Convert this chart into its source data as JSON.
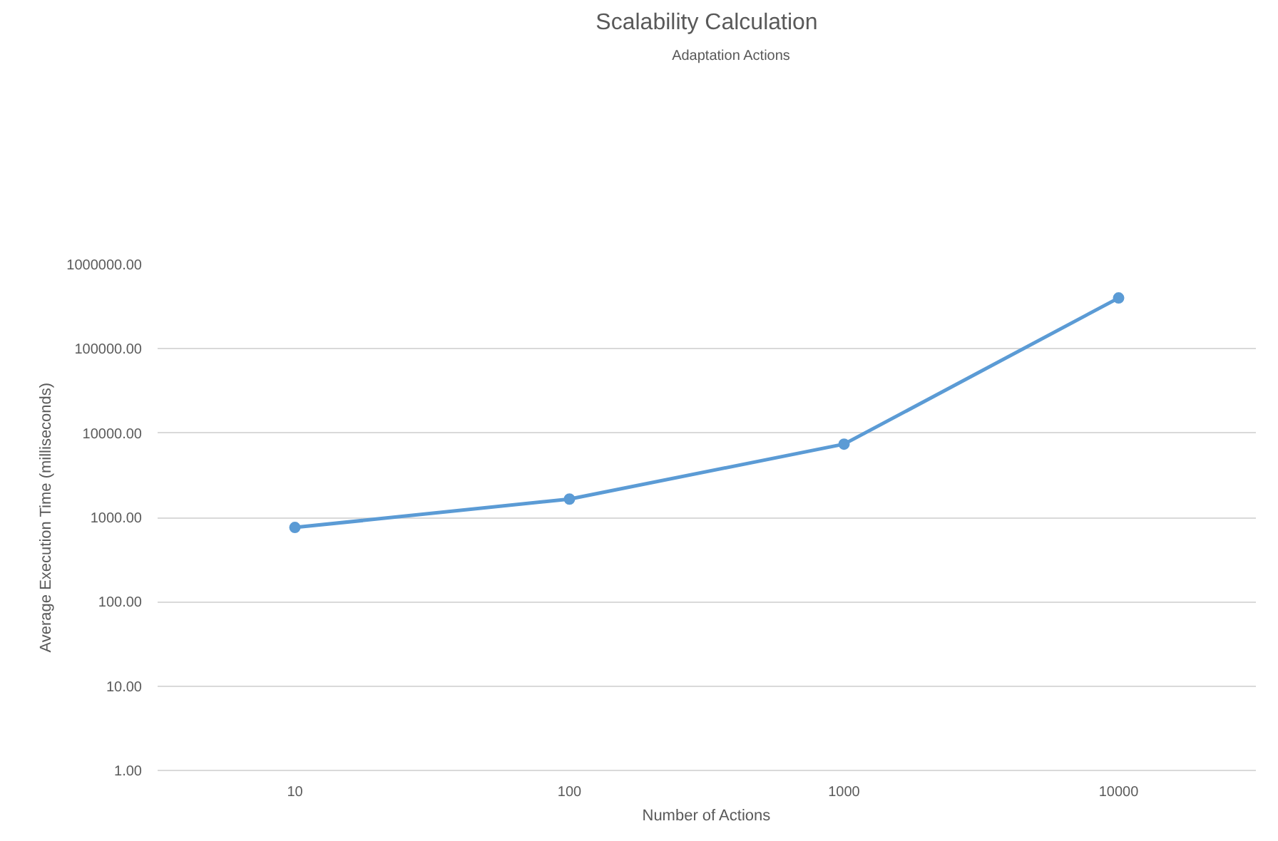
{
  "chart_data": {
    "type": "line",
    "title": "Scalability Calculation",
    "xlabel": "Number of Actions",
    "ylabel": "Average Execution Time (milliseconds)",
    "categories": [
      "10",
      "100",
      "1000",
      "10000"
    ],
    "series": [
      {
        "name": "Adaptation Actions",
        "color": "#5b9bd5",
        "values": [
          760,
          1650,
          7400,
          400000
        ]
      }
    ],
    "log": "y",
    "ylim": [
      1,
      1000000
    ],
    "yticks": [
      {
        "value": 1,
        "label": "1.00"
      },
      {
        "value": 10,
        "label": "10.00"
      },
      {
        "value": 100,
        "label": "100.00"
      },
      {
        "value": 1000,
        "label": "1000.00"
      },
      {
        "value": 10000,
        "label": "10000.00"
      },
      {
        "value": 100000,
        "label": "100000.00"
      },
      {
        "value": 1000000,
        "label": "1000000.00"
      }
    ],
    "grid": "y",
    "legend": "top",
    "marker": "circle",
    "line_style": "solid"
  }
}
